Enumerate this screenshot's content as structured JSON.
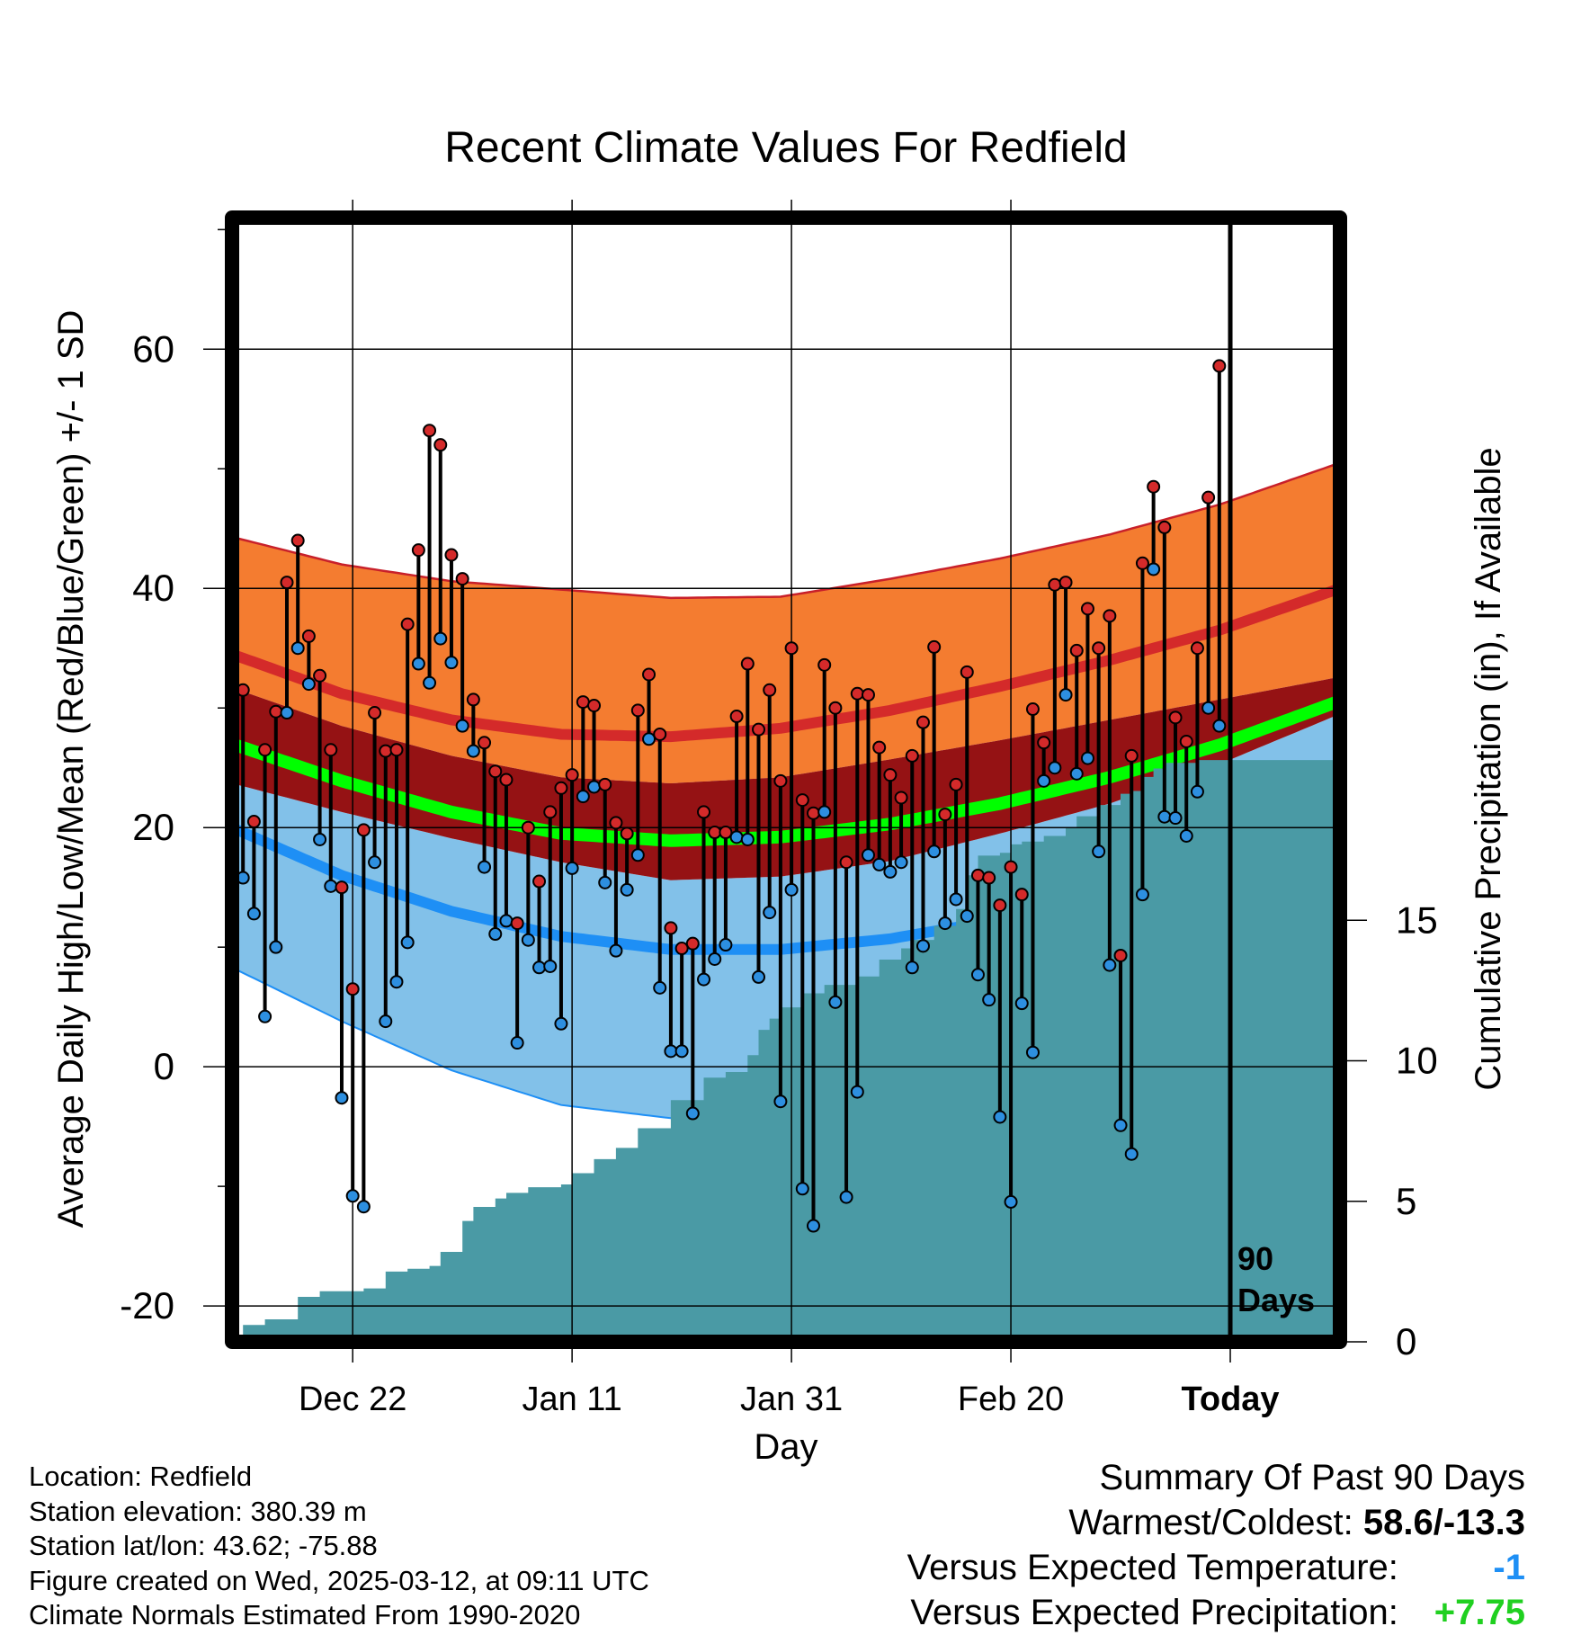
{
  "chart_data": {
    "type": "line",
    "title": "Recent Climate Values For Redfield",
    "xlabel": "Day",
    "ylabel_left": "Average Daily High/Low/Mean (Red/Blue/Green) +/- 1 SD",
    "ylabel_right": "Cumulative Precipitation (in), If Available",
    "x_ticks": [
      "Dec 22",
      "Jan 11",
      "Jan 31",
      "Feb 20",
      "Today"
    ],
    "x_tick_days": [
      11,
      31,
      51,
      71,
      91
    ],
    "xlim_days": [
      0,
      101
    ],
    "ylim_left": [
      -23,
      71
    ],
    "y_ticks_left": [
      -20,
      0,
      20,
      40,
      60
    ],
    "ylim_right": [
      0,
      40
    ],
    "y_ticks_right": [
      0,
      5,
      10,
      15
    ],
    "today_marker_label": "90 Days",
    "daily_high": [
      31.5,
      20.5,
      26.5,
      29.7,
      40.5,
      44.0,
      36.0,
      32.7,
      26.5,
      15.0,
      6.5,
      19.8,
      29.6,
      26.4,
      26.5,
      37.0,
      43.2,
      53.2,
      52.0,
      42.8,
      40.8,
      30.7,
      27.1,
      24.7,
      24.0,
      12.0,
      20.0,
      15.5,
      21.3,
      23.3,
      24.4,
      30.5,
      30.2,
      23.6,
      20.4,
      19.5,
      29.8,
      32.8,
      27.8,
      11.6,
      9.9,
      10.3,
      21.3,
      19.6,
      19.6,
      29.3,
      33.7,
      28.2,
      31.5,
      23.9,
      35.0,
      22.3,
      21.2,
      33.6,
      30.0,
      17.1,
      31.2,
      31.1,
      26.7,
      24.4,
      22.5,
      26.0,
      28.8,
      35.1,
      21.1,
      23.6,
      33.0,
      16.0,
      15.8,
      13.5,
      16.7,
      14.4,
      29.9,
      27.1,
      40.3,
      40.5,
      34.8,
      38.3,
      35.0,
      37.7,
      9.3,
      26.0,
      42.1,
      48.5,
      45.1,
      29.2,
      27.2,
      35.0,
      47.6,
      58.6
    ],
    "daily_low": [
      15.8,
      12.8,
      4.2,
      10.0,
      29.6,
      35.0,
      32.0,
      19.0,
      15.1,
      -2.6,
      -10.8,
      -11.7,
      17.1,
      3.8,
      7.1,
      10.4,
      33.7,
      32.1,
      35.8,
      33.8,
      28.5,
      26.4,
      16.7,
      11.1,
      12.2,
      2.0,
      10.6,
      8.3,
      8.4,
      3.6,
      16.6,
      22.6,
      23.4,
      15.4,
      9.7,
      14.8,
      17.7,
      27.4,
      6.6,
      1.3,
      1.3,
      -3.9,
      7.3,
      9.0,
      10.2,
      19.2,
      19.0,
      7.5,
      12.9,
      -2.9,
      14.8,
      -10.2,
      -13.3,
      21.3,
      5.4,
      -10.9,
      -2.1,
      17.7,
      16.9,
      16.3,
      17.1,
      8.3,
      10.1,
      18.0,
      12.0,
      14.0,
      12.6,
      7.7,
      5.6,
      -4.2,
      -11.3,
      5.3,
      1.2,
      23.9,
      25.0,
      31.1,
      24.5,
      25.8,
      18.0,
      8.5,
      -4.9,
      -7.3,
      14.4,
      41.6,
      20.9,
      20.8,
      19.3,
      23.0,
      30.0,
      28.5
    ],
    "normal_high": {
      "days": [
        0,
        10,
        20,
        30,
        40,
        50,
        60,
        70,
        80,
        90,
        101
      ],
      "mean": [
        34.5,
        31.2,
        29.0,
        27.8,
        27.6,
        28.3,
        29.8,
        31.8,
        34.0,
        36.5,
        40.0
      ],
      "plus_sd": [
        44.3,
        42.0,
        40.6,
        39.9,
        39.2,
        39.3,
        40.8,
        42.5,
        44.5,
        47.0,
        50.5
      ],
      "minus_sd": [
        31.7,
        28.5,
        26.0,
        24.2,
        23.7,
        24.2,
        25.7,
        27.3,
        29.0,
        30.7,
        32.6
      ]
    },
    "normal_mean": {
      "days": [
        0,
        10,
        20,
        30,
        40,
        50,
        60,
        70,
        80,
        90,
        101
      ],
      "mean": [
        27.0,
        23.9,
        21.3,
        19.5,
        18.9,
        19.2,
        20.3,
        22.0,
        24.2,
        26.9,
        30.6
      ]
    },
    "normal_low": {
      "days": [
        0,
        10,
        20,
        30,
        40,
        50,
        60,
        70,
        80,
        90,
        101
      ],
      "mean": [
        20.0,
        16.0,
        13.0,
        10.9,
        9.8,
        9.8,
        10.7,
        12.3,
        14.6,
        17.8,
        21.9
      ],
      "plus_sd": [
        23.7,
        21.3,
        19.1,
        17.1,
        15.6,
        15.9,
        17.2,
        19.5,
        22.0,
        25.3,
        29.5
      ],
      "minus_sd": [
        8.3,
        3.8,
        -0.3,
        -3.2,
        -4.3,
        -3.7,
        -1.4,
        1.2,
        4.5,
        7.8,
        10.8
      ]
    },
    "precip_cumulative": {
      "days": [
        0,
        1,
        3,
        6,
        8,
        12,
        14,
        16,
        18,
        19,
        21,
        22,
        24,
        25,
        27,
        30,
        31,
        33,
        35,
        37,
        40,
        43,
        45,
        47,
        48,
        49,
        50,
        52,
        54,
        57,
        59,
        61,
        62,
        64,
        66,
        67,
        68,
        70,
        71,
        72,
        74,
        76,
        77,
        79,
        81,
        82,
        83,
        84,
        85,
        88,
        90,
        101
      ],
      "values": [
        0.1,
        0.6,
        0.8,
        1.6,
        1.8,
        1.9,
        2.5,
        2.6,
        2.7,
        3.2,
        4.3,
        4.8,
        5.1,
        5.3,
        5.5,
        5.6,
        6.0,
        6.5,
        6.9,
        7.6,
        8.6,
        9.4,
        9.6,
        10.2,
        11.1,
        11.5,
        11.9,
        12.4,
        12.7,
        13.0,
        13.6,
        14.0,
        14.3,
        14.8,
        15.4,
        16.6,
        17.3,
        17.4,
        17.7,
        17.8,
        18.0,
        18.3,
        18.7,
        19.1,
        19.5,
        19.6,
        20.1,
        20.4,
        20.6,
        20.7,
        20.7,
        20.7
      ]
    },
    "colors": {
      "high_sd_band": "#f47c30",
      "high_normal_line": "#d42a2a",
      "high_low_overlap": "#951214",
      "mean_normal_line": "#00ff00",
      "low_sd_band": "#82c1e9",
      "low_normal_line": "#1e8ff5",
      "precip_fill": "#4a9aa5",
      "high_marker": "#d42a2a",
      "low_marker": "#2d8fe0"
    }
  },
  "info": {
    "location": "Location: Redfield",
    "elevation": "Station elevation: 380.39 m",
    "latlon": "Station lat/lon: 43.62; -75.88",
    "created": "Figure created on Wed, 2025-03-12, at 09:11 UTC",
    "normals": "Climate Normals Estimated From 1990-2020"
  },
  "summary": {
    "title": "Summary Of Past 90 Days",
    "warmest_coldest_label": "Warmest/Coldest:",
    "warmest_coldest_value": "58.6/-13.3",
    "temp_label": "Versus Expected Temperature:",
    "temp_value": "-1",
    "temp_color": "#1e8ff5",
    "precip_label": "Versus Expected Precipitation:",
    "precip_value": "+7.75",
    "precip_color": "#20d020"
  }
}
